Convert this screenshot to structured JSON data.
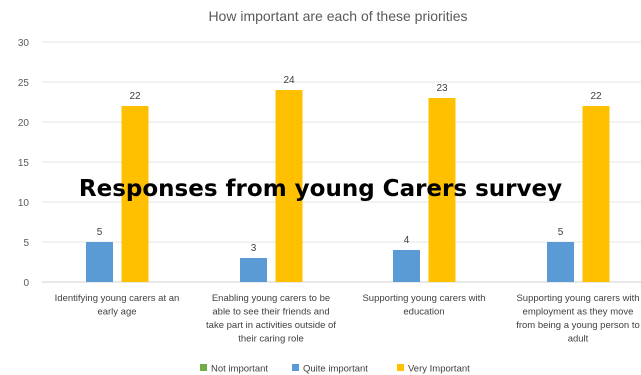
{
  "overlay": {
    "title": "Responses from young Carers survey"
  },
  "chart_data": {
    "type": "bar",
    "title": "How important are each of these priorities",
    "xlabel": "",
    "ylabel": "",
    "ylim": [
      0,
      30
    ],
    "yticks": [
      0,
      5,
      10,
      15,
      20,
      25,
      30
    ],
    "grid": true,
    "legend_position": "bottom",
    "categories": [
      [
        "Identifying young carers at an",
        "early age"
      ],
      [
        "Enabling young carers to be",
        "able to see their friends and",
        "take part in activities outside of",
        "their caring role"
      ],
      [
        "Supporting young carers with",
        "education"
      ],
      [
        "Supporting young carers with",
        "employment as they move",
        "from being a young person to",
        "adult"
      ]
    ],
    "series": [
      {
        "name": "Not important",
        "color": "#70ad47",
        "values": [
          0,
          0,
          0,
          0
        ]
      },
      {
        "name": "Quite important",
        "color": "#5b9bd5",
        "values": [
          5,
          3,
          4,
          5
        ]
      },
      {
        "name": "Very Important",
        "color": "#ffc000",
        "values": [
          22,
          24,
          23,
          22
        ]
      }
    ],
    "data_labels": {
      "Quite important": [
        "5",
        "3",
        "4",
        "5"
      ],
      "Very Important": [
        "22",
        "24",
        "23",
        "22"
      ]
    }
  }
}
